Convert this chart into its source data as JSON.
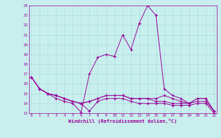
{
  "xlabel": "Windchill (Refroidissement éolien,°C)",
  "bg_color": "#c8eeee",
  "grid_color": "#aadddd",
  "line_color": "#990099",
  "x_min": 0,
  "x_max": 23,
  "y_min": 13,
  "y_max": 24,
  "lines": [
    [
      16.7,
      15.5,
      15.0,
      14.5,
      14.2,
      14.0,
      13.1,
      17.0,
      18.7,
      19.0,
      18.8,
      21.0,
      19.5,
      22.2,
      24.0,
      23.0,
      15.5,
      14.8,
      14.5,
      14.0,
      14.5,
      14.5,
      13.2
    ],
    [
      16.7,
      15.5,
      15.0,
      14.8,
      14.5,
      14.2,
      14.0,
      14.2,
      14.5,
      14.8,
      14.8,
      14.8,
      14.5,
      14.5,
      14.5,
      14.5,
      14.8,
      14.5,
      14.2,
      14.0,
      14.5,
      14.5,
      13.2
    ],
    [
      16.7,
      15.5,
      15.0,
      14.8,
      14.5,
      14.2,
      14.0,
      14.2,
      14.5,
      14.8,
      14.8,
      14.8,
      14.5,
      14.5,
      14.5,
      14.2,
      14.2,
      14.0,
      14.0,
      14.0,
      14.2,
      14.2,
      13.2
    ],
    [
      16.7,
      15.5,
      15.0,
      14.8,
      14.5,
      14.2,
      14.0,
      13.2,
      14.2,
      14.5,
      14.5,
      14.5,
      14.2,
      14.0,
      14.0,
      14.0,
      14.0,
      13.8,
      13.8,
      13.8,
      14.0,
      14.0,
      13.0
    ]
  ]
}
